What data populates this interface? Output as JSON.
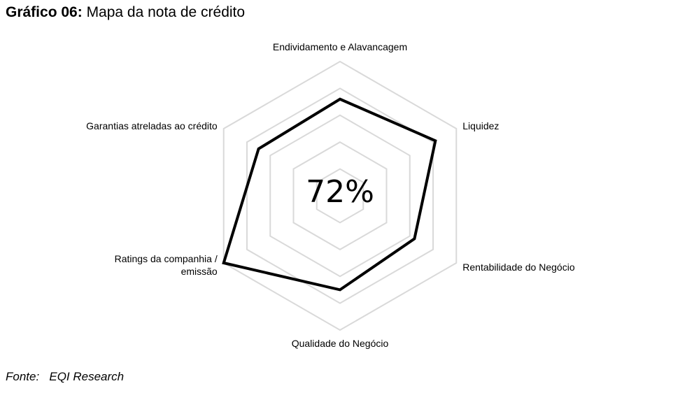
{
  "chart_data": {
    "type": "radar",
    "title_prefix": "Gráfico 06:",
    "title": "Mapa da nota de crédito",
    "categories": [
      "Endividamento e Alavancagem",
      "Liquidez",
      "Rentabilidade do Negócio",
      "Qualidade do Negócio",
      "Ratings da companhia / emissão",
      "Garantias atreladas ao crédito"
    ],
    "values": [
      3.6,
      4.1,
      3.2,
      3.5,
      5.0,
      3.5
    ],
    "color": "#000000",
    "rlim": [
      0,
      5
    ],
    "rticks": [
      1,
      2,
      3,
      4,
      5
    ],
    "grid_color": "#d9d9d9",
    "center_label": "72%",
    "source": "Fonte:   EQI Research"
  }
}
